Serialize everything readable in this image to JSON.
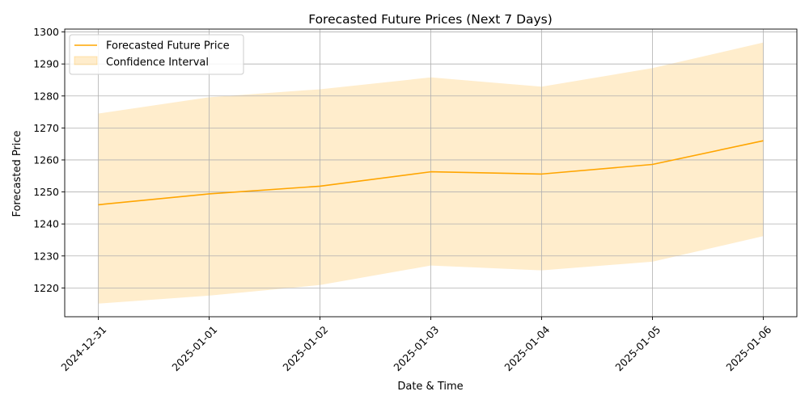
{
  "chart_data": {
    "type": "line",
    "title": "Forecasted Future Prices (Next 7 Days)",
    "xlabel": "Date & Time",
    "ylabel": "Forecasted Price",
    "categories": [
      "2024-12-31",
      "2025-01-01",
      "2025-01-02",
      "2025-01-03",
      "2025-01-04",
      "2025-01-05",
      "2025-01-06"
    ],
    "series": [
      {
        "name": "Forecasted Future Price",
        "type": "line",
        "color": "#ffa500",
        "values": [
          1246.0,
          1249.4,
          1251.8,
          1256.3,
          1255.6,
          1258.6,
          1266.0
        ]
      },
      {
        "name": "Confidence Interval",
        "type": "band",
        "color": "#ffa500",
        "opacity": 0.2,
        "lower": [
          1215.1,
          1217.6,
          1220.9,
          1227.0,
          1225.5,
          1228.2,
          1236.2
        ],
        "upper": [
          1274.5,
          1279.6,
          1282.1,
          1285.8,
          1282.9,
          1288.7,
          1296.7
        ]
      }
    ],
    "y_ticks": [
      1220,
      1230,
      1240,
      1250,
      1260,
      1270,
      1280,
      1290,
      1300
    ],
    "ylim": [
      1211.0,
      1300.9
    ],
    "grid": true,
    "legend_position": "top-left"
  }
}
